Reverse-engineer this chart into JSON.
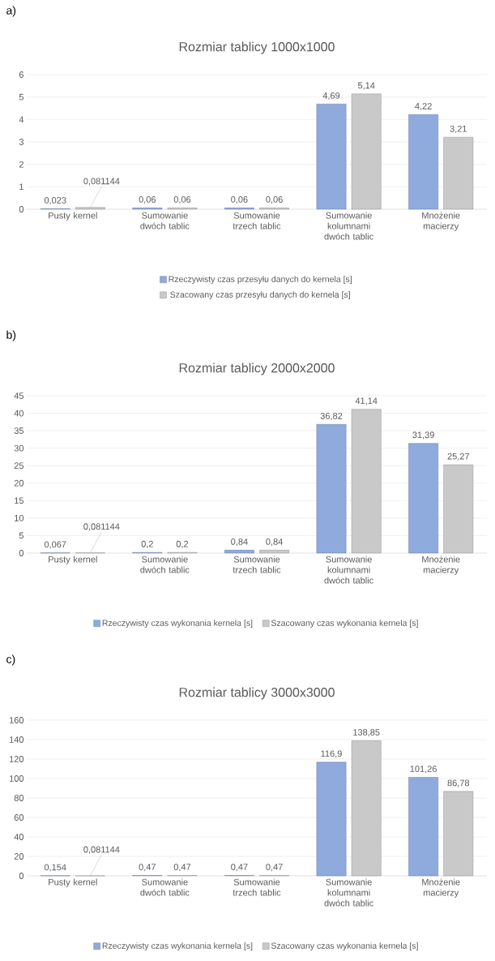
{
  "chart_data": [
    {
      "type": "bar",
      "title": "Rozmiar tablicy 1000x1000",
      "annotations": [
        "a)"
      ],
      "categories": [
        "Pusty kernel",
        "Sumowanie dwóch tablic",
        "Sumowanie trzech tablic",
        "Sumowanie kolumnami dwóch tablic",
        "Mnożenie macierzy"
      ],
      "series": [
        {
          "name": "Rzeczywisty czas przesyłu danych do kernela [s]",
          "color": "#8faadc",
          "values": [
            0.023,
            0.06,
            0.06,
            4.69,
            4.22
          ],
          "value_labels": [
            "0,023",
            "0,06",
            "0,06",
            "4,69",
            "4,22"
          ]
        },
        {
          "name": "Szacowany czas przesyłu danych do kernela [s]",
          "color": "#c9c9c9",
          "values": [
            0.081144,
            0.06,
            0.06,
            5.14,
            3.21
          ],
          "value_labels": [
            "0,081144",
            "0,06",
            "0,06",
            "5,14",
            "3,21"
          ]
        }
      ],
      "ylim": [
        0,
        6
      ],
      "yticks": [
        0,
        1,
        2,
        3,
        4,
        5,
        6
      ],
      "grid": "y",
      "legend": "bottom"
    },
    {
      "type": "bar",
      "title": "Rozmiar tablicy 2000x2000",
      "annotations": [
        "b)"
      ],
      "categories": [
        "Pusty kernel",
        "Sumowanie dwóch tablic",
        "Sumowanie trzech tablic",
        "Sumowanie kolumnami dwóch tablic",
        "Mnożenie macierzy"
      ],
      "series": [
        {
          "name": "Rzeczywisty czas wykonania kernela [s]",
          "color": "#8faadc",
          "values": [
            0.067,
            0.2,
            0.84,
            36.82,
            31.39
          ],
          "value_labels": [
            "0,067",
            "0,2",
            "0,84",
            "36,82",
            "31,39"
          ]
        },
        {
          "name": "Szacowany czas wykonania kernela [s]",
          "color": "#c9c9c9",
          "values": [
            0.081144,
            0.2,
            0.84,
            41.14,
            25.27
          ],
          "value_labels": [
            "0,081144",
            "0,2",
            "0,84",
            "41,14",
            "25,27"
          ]
        }
      ],
      "ylim": [
        0,
        45
      ],
      "yticks": [
        0,
        5,
        10,
        15,
        20,
        25,
        30,
        35,
        40,
        45
      ],
      "grid": "y",
      "legend": "bottom"
    },
    {
      "type": "bar",
      "title": "Rozmiar tablicy 3000x3000",
      "annotations": [
        "c)"
      ],
      "categories": [
        "Pusty kernel",
        "Sumowanie dwóch tablic",
        "Sumowanie trzech tablic",
        "Sumowanie kolumnami dwóch tablic",
        "Mnożenie macierzy"
      ],
      "series": [
        {
          "name": "Rzeczywisty czas wykonania kernela [s]",
          "color": "#8faadc",
          "values": [
            0.154,
            0.47,
            0.47,
            116.9,
            101.26
          ],
          "value_labels": [
            "0,154",
            "0,47",
            "0,47",
            "116,9",
            "101,26"
          ]
        },
        {
          "name": "Szacowany czas wykonania kernela [s]",
          "color": "#c9c9c9",
          "values": [
            0.081144,
            0.47,
            0.47,
            138.85,
            86.78
          ],
          "value_labels": [
            "0,081144",
            "0,47",
            "0,47",
            "138,85",
            "86,78"
          ]
        }
      ],
      "ylim": [
        0,
        160
      ],
      "yticks": [
        0,
        20,
        40,
        60,
        80,
        100,
        120,
        140,
        160
      ],
      "grid": "y",
      "legend": "bottom"
    }
  ]
}
